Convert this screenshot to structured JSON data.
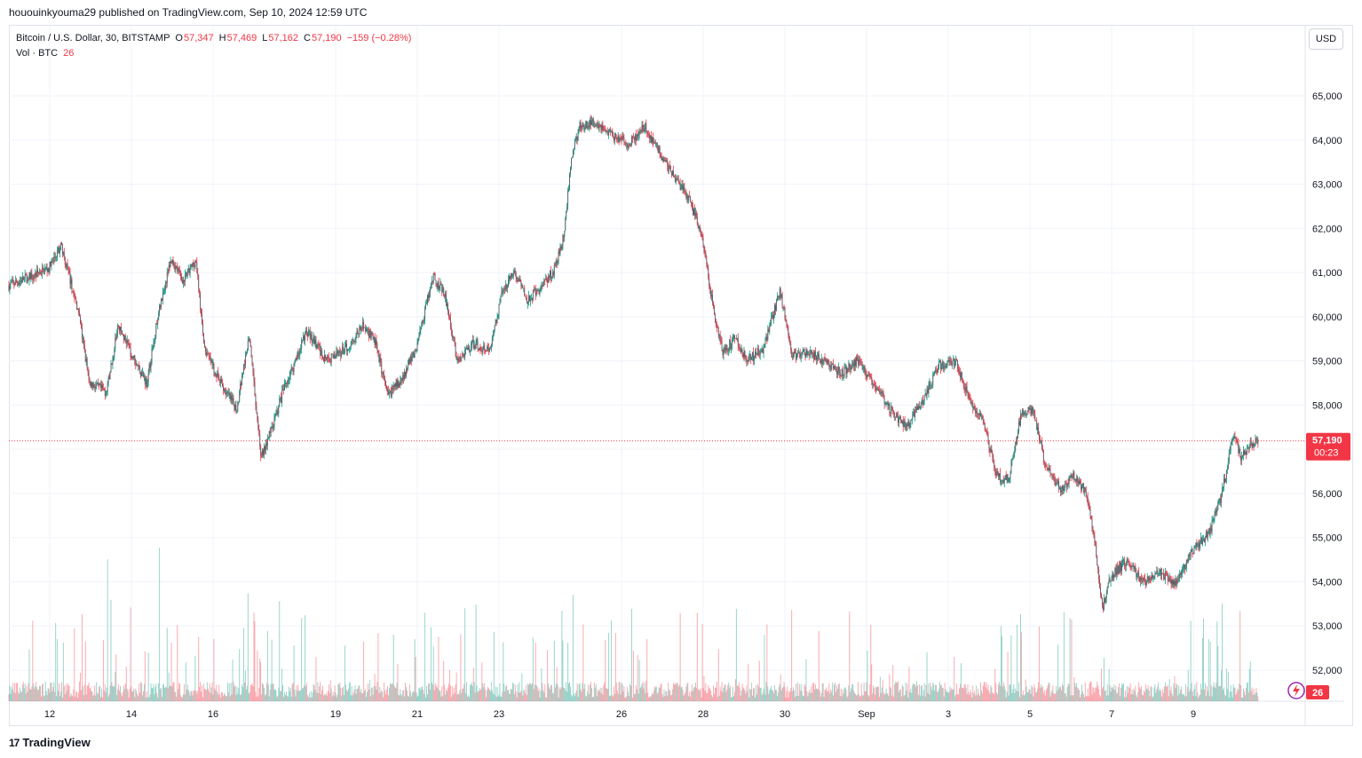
{
  "header": {
    "publisher_line": "hououinkyouma29 published on TradingView.com, Sep 10, 2024 12:59 UTC"
  },
  "legend": {
    "symbol": "Bitcoin / U.S. Dollar, 30, BITSTAMP",
    "open_label": "O",
    "open": "57,347",
    "high_label": "H",
    "high": "57,469",
    "low_label": "L",
    "low": "57,162",
    "close_label": "C",
    "close": "57,190",
    "change": "−159 (−0.28%)",
    "volume_label": "Vol · BTC",
    "volume": "26"
  },
  "currency_button": "USD",
  "price_badge": {
    "price": "57,190",
    "countdown": "00:23"
  },
  "volume_badge": "26",
  "footer": {
    "brand": "TradingView",
    "logo_icon": "tradingview-logo-icon"
  },
  "colors": {
    "up": "#089981",
    "down": "#f23645",
    "candle_body": "#5d606b",
    "grid": "#f0f3fa",
    "price_line": "#f23645"
  },
  "chart_data": {
    "type": "candlestick",
    "title": "Bitcoin / U.S. Dollar, 30, BITSTAMP",
    "interval": "30",
    "last_price": 57190,
    "ylim": [
      51500,
      65500
    ],
    "y_ticks": [
      "65,000",
      "64,000",
      "63,000",
      "62,000",
      "61,000",
      "60,000",
      "59,000",
      "58,000",
      "57,000",
      "56,000",
      "55,000",
      "54,000",
      "53,000",
      "52,000"
    ],
    "y_tick_values": [
      65000,
      64000,
      63000,
      62000,
      61000,
      60000,
      59000,
      58000,
      57000,
      56000,
      55000,
      54000,
      53000,
      52000
    ],
    "x_ticks": [
      "12",
      "14",
      "16",
      "19",
      "21",
      "23",
      "26",
      "28",
      "30",
      "Sep",
      "3",
      "5",
      "7",
      "9"
    ],
    "x_range_dates": [
      "2024-08-11",
      "2024-09-10"
    ],
    "price_path": [
      {
        "day": 0.0,
        "price": 60700
      },
      {
        "day": 1.0,
        "price": 61100
      },
      {
        "day": 1.3,
        "price": 61600
      },
      {
        "day": 1.7,
        "price": 60200
      },
      {
        "day": 2.0,
        "price": 58500
      },
      {
        "day": 2.4,
        "price": 58300
      },
      {
        "day": 2.7,
        "price": 59800
      },
      {
        "day": 3.0,
        "price": 59200
      },
      {
        "day": 3.4,
        "price": 58500
      },
      {
        "day": 3.7,
        "price": 60200
      },
      {
        "day": 4.0,
        "price": 61300
      },
      {
        "day": 4.3,
        "price": 60800
      },
      {
        "day": 4.6,
        "price": 61300
      },
      {
        "day": 4.8,
        "price": 59300
      },
      {
        "day": 5.2,
        "price": 58500
      },
      {
        "day": 5.6,
        "price": 57900
      },
      {
        "day": 5.9,
        "price": 59600
      },
      {
        "day": 6.2,
        "price": 56800
      },
      {
        "day": 6.5,
        "price": 57600
      },
      {
        "day": 6.8,
        "price": 58500
      },
      {
        "day": 7.0,
        "price": 58900
      },
      {
        "day": 7.3,
        "price": 59700
      },
      {
        "day": 7.8,
        "price": 59000
      },
      {
        "day": 8.3,
        "price": 59300
      },
      {
        "day": 8.7,
        "price": 59800
      },
      {
        "day": 9.0,
        "price": 59400
      },
      {
        "day": 9.3,
        "price": 58200
      },
      {
        "day": 9.7,
        "price": 58700
      },
      {
        "day": 10.0,
        "price": 59300
      },
      {
        "day": 10.4,
        "price": 60900
      },
      {
        "day": 10.7,
        "price": 60500
      },
      {
        "day": 11.0,
        "price": 59000
      },
      {
        "day": 11.4,
        "price": 59400
      },
      {
        "day": 11.8,
        "price": 59200
      },
      {
        "day": 12.1,
        "price": 60600
      },
      {
        "day": 12.4,
        "price": 61000
      },
      {
        "day": 12.7,
        "price": 60400
      },
      {
        "day": 13.0,
        "price": 60600
      },
      {
        "day": 13.4,
        "price": 61100
      },
      {
        "day": 13.6,
        "price": 61800
      },
      {
        "day": 13.8,
        "price": 63600
      },
      {
        "day": 14.0,
        "price": 64300
      },
      {
        "day": 14.4,
        "price": 64400
      },
      {
        "day": 14.8,
        "price": 64100
      },
      {
        "day": 15.2,
        "price": 63900
      },
      {
        "day": 15.6,
        "price": 64300
      },
      {
        "day": 15.9,
        "price": 63800
      },
      {
        "day": 16.3,
        "price": 63200
      },
      {
        "day": 16.7,
        "price": 62600
      },
      {
        "day": 17.0,
        "price": 61800
      },
      {
        "day": 17.3,
        "price": 60000
      },
      {
        "day": 17.5,
        "price": 59200
      },
      {
        "day": 17.8,
        "price": 59500
      },
      {
        "day": 18.1,
        "price": 59000
      },
      {
        "day": 18.5,
        "price": 59300
      },
      {
        "day": 18.9,
        "price": 60600
      },
      {
        "day": 19.2,
        "price": 59100
      },
      {
        "day": 19.6,
        "price": 59200
      },
      {
        "day": 20.0,
        "price": 59000
      },
      {
        "day": 20.4,
        "price": 58700
      },
      {
        "day": 20.8,
        "price": 59000
      },
      {
        "day": 21.2,
        "price": 58500
      },
      {
        "day": 21.6,
        "price": 57900
      },
      {
        "day": 22.0,
        "price": 57500
      },
      {
        "day": 22.4,
        "price": 58100
      },
      {
        "day": 22.8,
        "price": 58900
      },
      {
        "day": 23.2,
        "price": 59000
      },
      {
        "day": 23.6,
        "price": 58000
      },
      {
        "day": 23.9,
        "price": 57600
      },
      {
        "day": 24.2,
        "price": 56400
      },
      {
        "day": 24.5,
        "price": 56300
      },
      {
        "day": 24.8,
        "price": 57800
      },
      {
        "day": 25.1,
        "price": 57900
      },
      {
        "day": 25.4,
        "price": 56600
      },
      {
        "day": 25.8,
        "price": 56100
      },
      {
        "day": 26.1,
        "price": 56400
      },
      {
        "day": 26.4,
        "price": 56000
      },
      {
        "day": 26.6,
        "price": 55000
      },
      {
        "day": 26.8,
        "price": 53400
      },
      {
        "day": 27.0,
        "price": 54100
      },
      {
        "day": 27.4,
        "price": 54500
      },
      {
        "day": 27.8,
        "price": 54000
      },
      {
        "day": 28.2,
        "price": 54200
      },
      {
        "day": 28.6,
        "price": 54000
      },
      {
        "day": 29.0,
        "price": 54700
      },
      {
        "day": 29.4,
        "price": 55100
      },
      {
        "day": 29.7,
        "price": 55900
      },
      {
        "day": 30.0,
        "price": 57300
      },
      {
        "day": 30.2,
        "price": 56800
      },
      {
        "day": 30.4,
        "price": 57100
      },
      {
        "day": 30.6,
        "price": 57190
      }
    ]
  }
}
